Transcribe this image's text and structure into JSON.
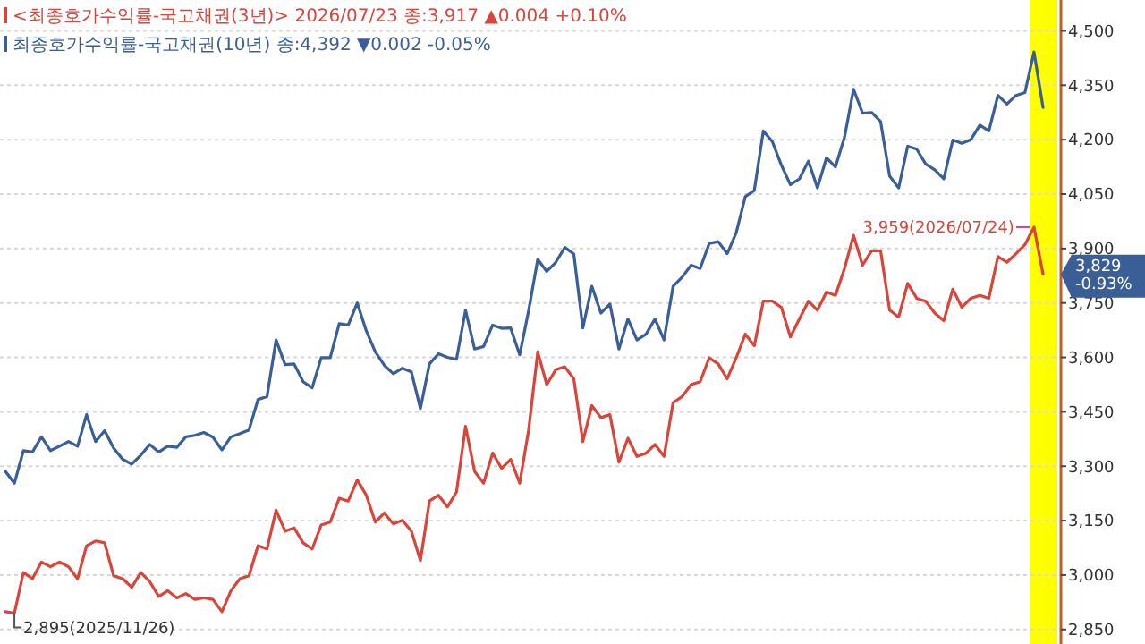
{
  "chart_data": {
    "type": "line",
    "categories": [
      null,
      null,
      null,
      null,
      null,
      null,
      null,
      null,
      null,
      null,
      null,
      null,
      null,
      null,
      null,
      null,
      null,
      null,
      null,
      null,
      null,
      null,
      null,
      null,
      null,
      null,
      null,
      null,
      null,
      null,
      null,
      null,
      null,
      null,
      null,
      null,
      null,
      null,
      null,
      null,
      null,
      null,
      null,
      null,
      null,
      null,
      null,
      null,
      null,
      null,
      null,
      null,
      null,
      null,
      null,
      null,
      null,
      null,
      null,
      null,
      null,
      null,
      null,
      null,
      null,
      null,
      null,
      null,
      null,
      null,
      null,
      null,
      null,
      null,
      null,
      null,
      null,
      null,
      null,
      null,
      null,
      null,
      null,
      null,
      null,
      null,
      null,
      null,
      null,
      null,
      null,
      null,
      null,
      null,
      null,
      null,
      null,
      null,
      null,
      null,
      null,
      null,
      null,
      null,
      null,
      null,
      null,
      null,
      null,
      null,
      null,
      null,
      null,
      null,
      null,
      null
    ],
    "ylim": [
      2810,
      4585
    ],
    "yticks": [
      {
        "value": 2850,
        "label": "2,850"
      },
      {
        "value": 3000,
        "label": "3,000"
      },
      {
        "value": 3150,
        "label": "3,150"
      },
      {
        "value": 3300,
        "label": "3,300"
      },
      {
        "value": 3450,
        "label": "3,450"
      },
      {
        "value": 3600,
        "label": "3,600"
      },
      {
        "value": 3750,
        "label": "3,750"
      },
      {
        "value": 3900,
        "label": "3,900"
      },
      {
        "value": 4050,
        "label": "4,050"
      },
      {
        "value": 4200,
        "label": "4,200"
      },
      {
        "value": 4350,
        "label": "4,350"
      },
      {
        "value": 4500,
        "label": "4,500"
      }
    ],
    "tick_labels": "y",
    "grid": "y",
    "legend": "top left",
    "marker": "none",
    "line_style": "solid",
    "series": [
      {
        "name": "<최종호가수익률-국고채권(3년)> 2026/07/23 종:3,917 ▲0.004 +0.10%",
        "color": "#d9453a",
        "values": [
          2899,
          2895,
          3007,
          2990,
          3036,
          3023,
          3036,
          3023,
          2990,
          3081,
          3094,
          3089,
          2998,
          2990,
          2966,
          3007,
          2982,
          2941,
          2957,
          2937,
          2949,
          2933,
          2937,
          2933,
          2899,
          2957,
          2990,
          2998,
          3081,
          3072,
          3179,
          3121,
          3130,
          3089,
          3072,
          3138,
          3146,
          3212,
          3204,
          3262,
          3220,
          3146,
          3171,
          3141,
          3151,
          3121,
          3040,
          3204,
          3220,
          3188,
          3229,
          3410,
          3286,
          3253,
          3336,
          3294,
          3319,
          3253,
          3401,
          3615,
          3525,
          3566,
          3574,
          3541,
          3368,
          3467,
          3434,
          3442,
          3311,
          3377,
          3327,
          3336,
          3360,
          3327,
          3475,
          3492,
          3525,
          3533,
          3599,
          3582,
          3541,
          3599,
          3664,
          3632,
          3755,
          3755,
          3738,
          3656,
          3706,
          3755,
          3730,
          3780,
          3771,
          3845,
          3936,
          3854,
          3894,
          3894,
          3730,
          3711,
          3804,
          3763,
          3755,
          3722,
          3701,
          3788,
          3738,
          3763,
          3771,
          3763,
          3878,
          3862,
          3886,
          3911,
          3959,
          3829
        ]
      },
      {
        "name": "최종호가수익률-국고채권(10년) 종:4,392 ▼0.002 -0.05%",
        "color": "#3a5e96",
        "values": [
          3286,
          3253,
          3343,
          3339,
          3381,
          3343,
          3355,
          3368,
          3355,
          3442,
          3368,
          3398,
          3350,
          3319,
          3306,
          3330,
          3360,
          3339,
          3355,
          3352,
          3381,
          3385,
          3393,
          3380,
          3345,
          3381,
          3390,
          3400,
          3484,
          3492,
          3648,
          3580,
          3582,
          3533,
          3516,
          3599,
          3599,
          3693,
          3689,
          3750,
          3673,
          3615,
          3578,
          3555,
          3570,
          3560,
          3459,
          3582,
          3610,
          3600,
          3595,
          3730,
          3623,
          3630,
          3689,
          3680,
          3681,
          3607,
          3730,
          3870,
          3837,
          3862,
          3903,
          3885,
          3681,
          3796,
          3722,
          3747,
          3623,
          3706,
          3648,
          3664,
          3706,
          3648,
          3796,
          3821,
          3854,
          3845,
          3914,
          3919,
          3886,
          3944,
          4043,
          4060,
          4224,
          4195,
          4130,
          4076,
          4092,
          4141,
          4067,
          4150,
          4125,
          4207,
          4339,
          4273,
          4275,
          4250,
          4100,
          4067,
          4182,
          4174,
          4133,
          4117,
          4092,
          4199,
          4190,
          4200,
          4240,
          4224,
          4322,
          4298,
          4322,
          4330,
          4442,
          4289
        ]
      }
    ],
    "annotations": [
      "2,895(2025/11/26)",
      "3,959(2026/07/24)",
      "3,829\n-0.93%"
    ]
  }
}
